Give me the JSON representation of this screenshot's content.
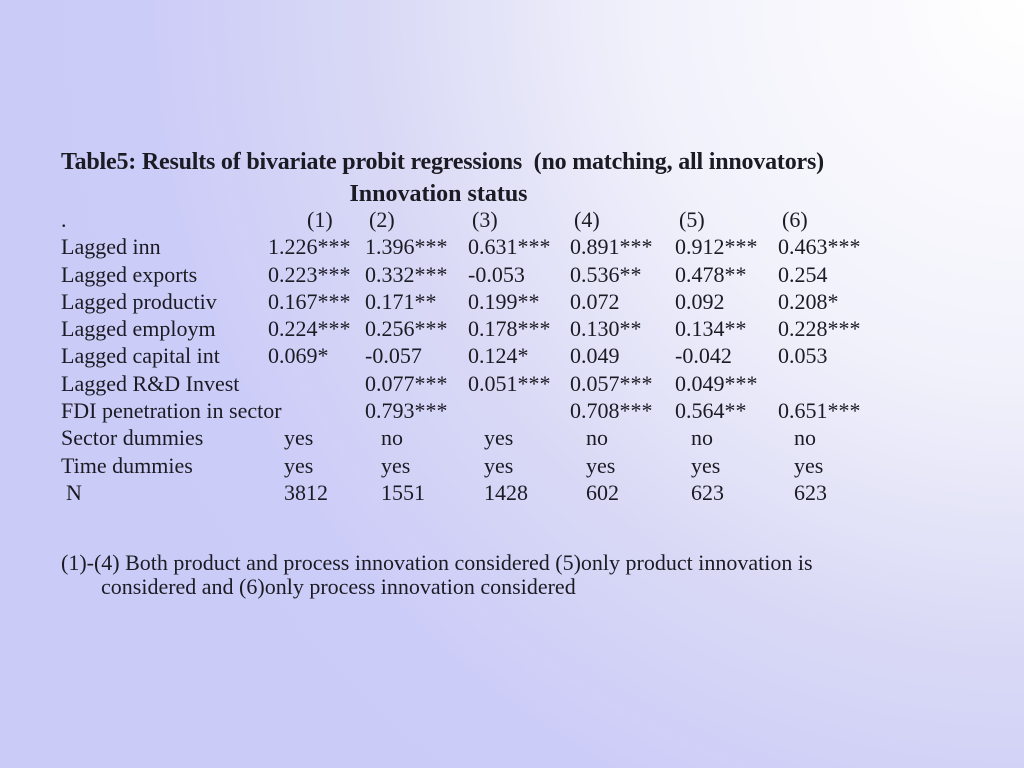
{
  "slide": {
    "title_line1": "Table5: Results of bivariate probit regressions  (no matching, all innovators)",
    "title_line2": "Innovation status"
  },
  "table": {
    "corner_label": ".",
    "columns": [
      "(1)",
      "(2)",
      "(3)",
      "(4)",
      "(5)",
      "(6)"
    ],
    "rows": [
      {
        "label": "Lagged inn",
        "values": [
          "1.226***",
          "1.396***",
          "0.631***",
          "0.891***",
          "0.912***",
          "0.463***"
        ],
        "shift": false
      },
      {
        "label": "Lagged exports",
        "values": [
          "0.223***",
          "0.332***",
          "-0.053",
          "0.536**",
          "0.478**",
          "0.254"
        ],
        "shift": false
      },
      {
        "label": "Lagged productiv",
        "values": [
          "0.167***",
          "0.171**",
          "0.199**",
          "0.072",
          "0.092",
          "0.208*"
        ],
        "shift": false
      },
      {
        "label": "Lagged employm",
        "values": [
          "0.224***",
          "0.256***",
          "0.178***",
          "0.130**",
          "0.134**",
          "0.228***"
        ],
        "shift": false
      },
      {
        "label": "Lagged capital int",
        "values": [
          "0.069*",
          "-0.057",
          "0.124*",
          "0.049",
          "-0.042",
          "0.053"
        ],
        "shift": false
      },
      {
        "label": "Lagged R&D Invest",
        "values": [
          "",
          "0.077***",
          "0.051***",
          "0.057***",
          "0.049***",
          ""
        ],
        "shift": false
      },
      {
        "label": "FDI penetration in sector",
        "values": [
          "",
          "0.793***",
          "",
          "0.708***",
          "0.564**",
          "0.651***"
        ],
        "shift": false
      },
      {
        "label": "Sector dummies",
        "values": [
          "yes",
          "no",
          "yes",
          "no",
          "no",
          "no"
        ],
        "shift": true
      },
      {
        "label": "Time dummies",
        "values": [
          "yes",
          "yes",
          "yes",
          "yes",
          "yes",
          "yes"
        ],
        "shift": true
      },
      {
        "label": "N",
        "values": [
          "3812",
          "1551",
          "1428",
          "602",
          "623",
          "623"
        ],
        "shift": true
      }
    ]
  },
  "footnote": {
    "line1": "(1)-(4) Both product and process innovation considered (5)only product innovation is",
    "line2": "considered and (6)only process innovation considered"
  },
  "colors": {
    "background_base": "#ccccf8",
    "background_highlight": "#ffffff",
    "text": "#1b1b24"
  }
}
